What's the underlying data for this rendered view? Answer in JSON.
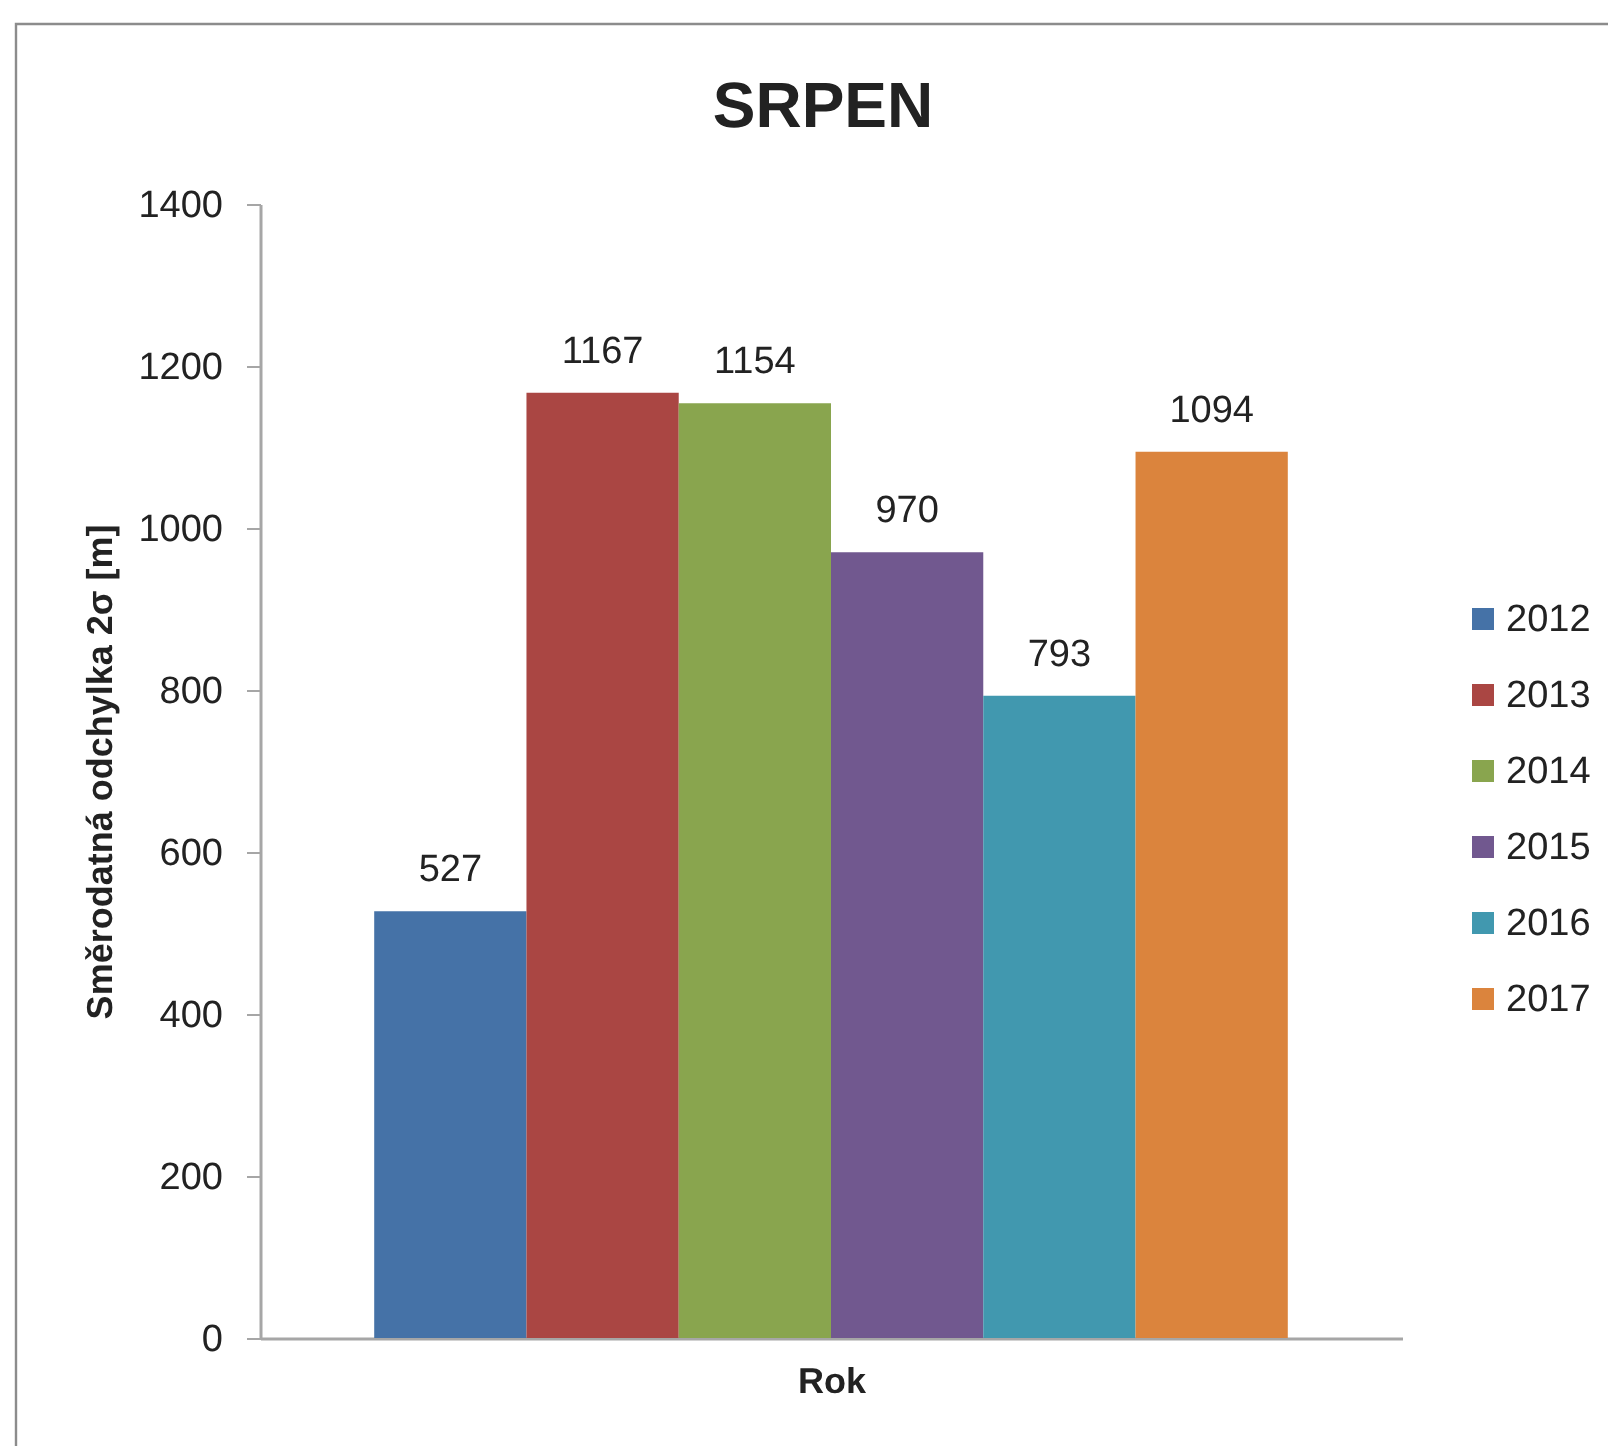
{
  "chart_data": {
    "type": "bar",
    "title": "SRPEN",
    "xlabel": "Rok",
    "ylabel": "Směrodatná odchylka 2σ [m]",
    "categories": [
      null
    ],
    "series": [
      {
        "name": "2012",
        "color": "#4572a7",
        "values": [
          527
        ]
      },
      {
        "name": "2013",
        "color": "#aa4643",
        "values": [
          1167
        ]
      },
      {
        "name": "2014",
        "color": "#89a54e",
        "values": [
          1154
        ]
      },
      {
        "name": "2015",
        "color": "#71588f",
        "values": [
          970
        ]
      },
      {
        "name": "2016",
        "color": "#4198af",
        "values": [
          793
        ]
      },
      {
        "name": "2017",
        "color": "#db843d",
        "values": [
          1094
        ]
      }
    ],
    "ylim": [
      0,
      1400
    ],
    "yticks": [
      0,
      200,
      400,
      600,
      800,
      1000,
      1200,
      1400
    ],
    "grid": false,
    "legend": "right",
    "data_labels": true
  }
}
